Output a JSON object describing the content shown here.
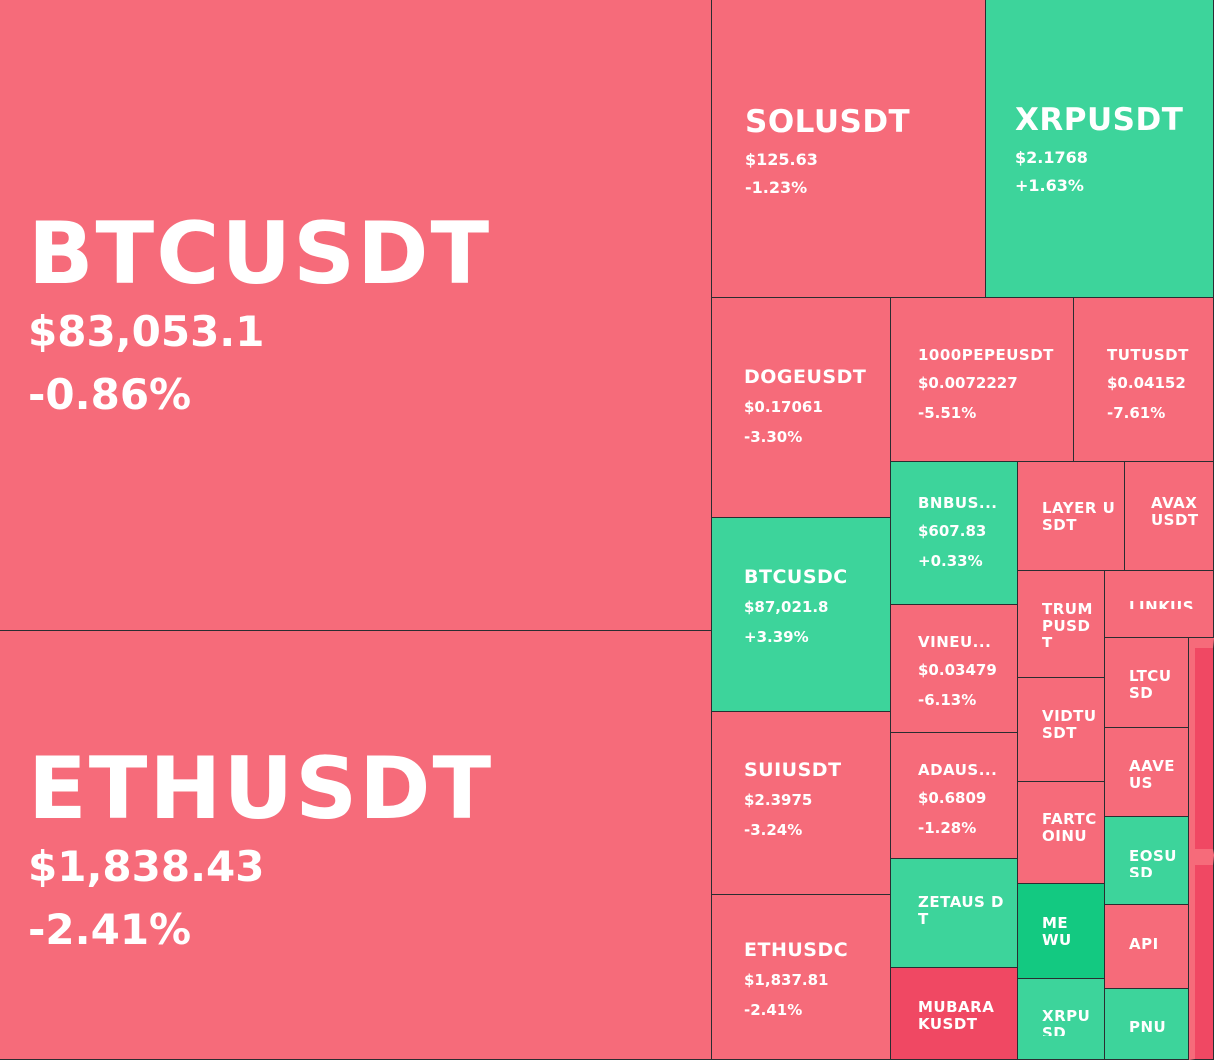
{
  "treemap": {
    "tiles": [
      {
        "id": "btcusdt",
        "symbol": "BTCUSDT",
        "price": "$83,053.1",
        "change": "-0.86%",
        "color": "#f66b7a"
      },
      {
        "id": "ethusdt",
        "symbol": "ETHUSDT",
        "price": "$1,838.43",
        "change": "-2.41%",
        "color": "#f66b7a"
      },
      {
        "id": "solusdt",
        "symbol": "SOLUSDT",
        "price": "$125.63",
        "change": "-1.23%",
        "color": "#f66b7a"
      },
      {
        "id": "xrpusdt",
        "symbol": "XRPUSDT",
        "price": "$2.1768",
        "change": "+1.63%",
        "color": "#3dd49b"
      },
      {
        "id": "dogeusdt",
        "symbol": "DOGEUSDT",
        "price": "$0.17061",
        "change": "-3.30%",
        "color": "#f66b7a"
      },
      {
        "id": "1000pepeusdt",
        "symbol": "1000PEPEUSDT",
        "price": "$0.0072227",
        "change": "-5.51%",
        "color": "#f66b7a"
      },
      {
        "id": "tutusdt",
        "symbol": "TUTUSDT",
        "price": "$0.04152",
        "change": "-7.61%",
        "color": "#f66b7a"
      },
      {
        "id": "btcusdc",
        "symbol": "BTCUSDC",
        "price": "$87,021.8",
        "change": "+3.39%",
        "color": "#3dd49b"
      },
      {
        "id": "bnbusdt",
        "symbol": "BNBUS...",
        "price": "$607.83",
        "change": "+0.33%",
        "color": "#3dd49b"
      },
      {
        "id": "layerusdt",
        "symbol": "LAYER USDT",
        "color": "#f66b7a"
      },
      {
        "id": "avaxusdt",
        "symbol": "AVAXUSDT",
        "color": "#f66b7a"
      },
      {
        "id": "vineusdt",
        "symbol": "VINEU...",
        "price": "$0.03479",
        "change": "-6.13%",
        "color": "#f66b7a"
      },
      {
        "id": "trumpusdt",
        "symbol": "TRUMPUSDT",
        "color": "#f66b7a"
      },
      {
        "id": "linkusdt",
        "symbol": "LINKUS",
        "color": "#f66b7a"
      },
      {
        "id": "ltcusdt",
        "symbol": "LTCUSD",
        "color": "#f66b7a"
      },
      {
        "id": "suiusdt",
        "symbol": "SUIUSDT",
        "price": "$2.3975",
        "change": "-3.24%",
        "color": "#f66b7a"
      },
      {
        "id": "adausdt",
        "symbol": "ADAUS...",
        "price": "$0.6809",
        "change": "-1.28%",
        "color": "#f66b7a"
      },
      {
        "id": "vidtusdt",
        "symbol": "VIDTUSDT",
        "color": "#f66b7a"
      },
      {
        "id": "aaveusdt",
        "symbol": "AAVEUS",
        "color": "#f66b7a"
      },
      {
        "id": "fartcoinusdt",
        "symbol": "FARTCOINU",
        "color": "#f66b7a"
      },
      {
        "id": "eosusdt",
        "symbol": "EOSUSD",
        "color": "#3dd49b"
      },
      {
        "id": "zetausdt",
        "symbol": "ZETAUS DT",
        "color": "#3dd49b"
      },
      {
        "id": "mewusdt",
        "symbol": "MEWU",
        "color": "#13c981"
      },
      {
        "id": "apiusdt",
        "symbol": "API",
        "color": "#f66b7a"
      },
      {
        "id": "ethusdc",
        "symbol": "ETHUSDC",
        "price": "$1,837.81",
        "change": "-2.41%",
        "color": "#f66b7a"
      },
      {
        "id": "mubarakusdt",
        "symbol": "MUBARA KUSDT",
        "color": "#f04863"
      },
      {
        "id": "xrpusdc",
        "symbol": "XRPUSD",
        "color": "#3dd49b"
      },
      {
        "id": "pnutusdt",
        "symbol": "PNU",
        "color": "#3dd49b"
      },
      {
        "id": "edge-1",
        "color": "#f04863"
      },
      {
        "id": "edge-2",
        "color": "#f04863"
      }
    ]
  }
}
